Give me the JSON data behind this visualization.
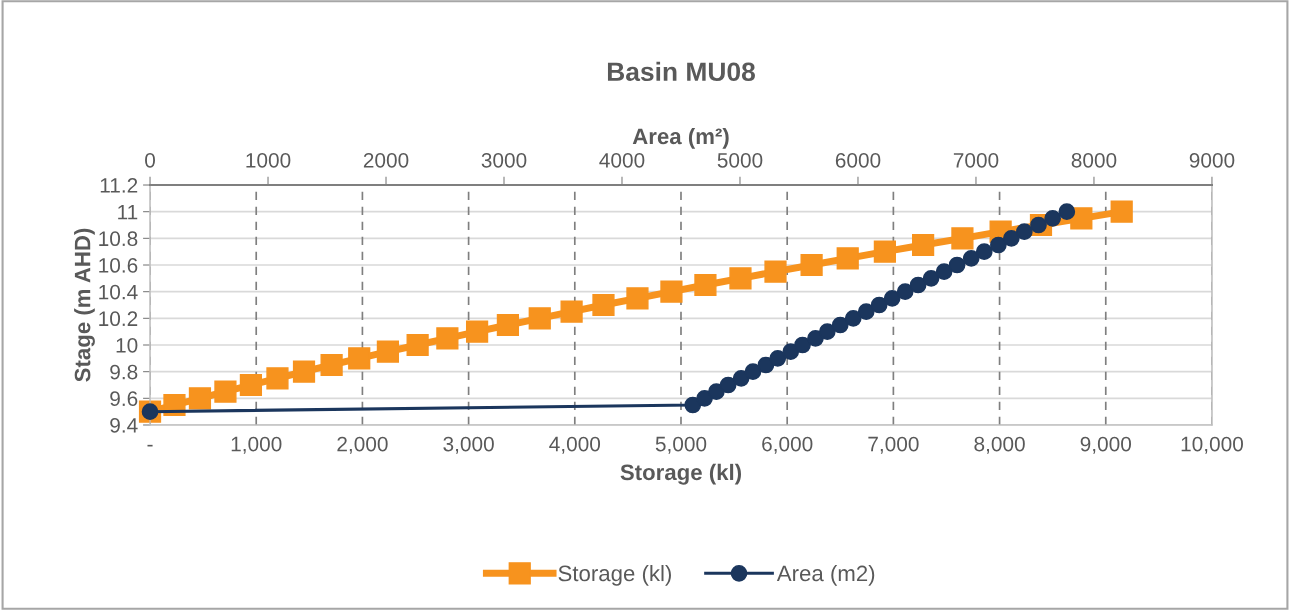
{
  "chart_data": {
    "type": "line",
    "title": "Basin MU08",
    "xlabel": "Storage (kl)",
    "x2label": "Area (m²)",
    "ylabel": "Stage (m AHD)",
    "xlim": [
      0,
      10000
    ],
    "xticks": [
      {
        "value": 0,
        "label": "-"
      },
      {
        "value": 1000,
        "label": "1,000"
      },
      {
        "value": 2000,
        "label": "2,000"
      },
      {
        "value": 3000,
        "label": "3,000"
      },
      {
        "value": 4000,
        "label": "4,000"
      },
      {
        "value": 5000,
        "label": "5,000"
      },
      {
        "value": 6000,
        "label": "6,000"
      },
      {
        "value": 7000,
        "label": "7,000"
      },
      {
        "value": 8000,
        "label": "8,000"
      },
      {
        "value": 9000,
        "label": "9,000"
      },
      {
        "value": 10000,
        "label": "10,000"
      }
    ],
    "x2lim": [
      0,
      9000
    ],
    "x2ticks": [
      0,
      1000,
      2000,
      3000,
      4000,
      5000,
      6000,
      7000,
      8000,
      9000
    ],
    "ylim": [
      9.4,
      11.2
    ],
    "yticks": [
      9.4,
      9.6,
      9.8,
      10,
      10.2,
      10.4,
      10.6,
      10.8,
      11,
      11.2
    ],
    "grid": true,
    "legend": "bottom",
    "line_style": "solid",
    "series": [
      {
        "name": "Storage (kl)",
        "color": "#f7931e",
        "marker": "square",
        "x": [
          0,
          230,
          470,
          710,
          950,
          1200,
          1450,
          1710,
          1970,
          2240,
          2520,
          2800,
          3080,
          3370,
          3670,
          3970,
          4270,
          4590,
          4910,
          5230,
          5560,
          5890,
          6230,
          6570,
          6920,
          7280,
          7650,
          8010,
          8390,
          8770,
          9150
        ],
        "values": [
          9.5,
          9.55,
          9.6,
          9.65,
          9.7,
          9.75,
          9.8,
          9.85,
          9.9,
          9.95,
          10,
          10.05,
          10.1,
          10.15,
          10.2,
          10.25,
          10.3,
          10.35,
          10.4,
          10.45,
          10.5,
          10.55,
          10.6,
          10.65,
          10.7,
          10.75,
          10.8,
          10.85,
          10.9,
          10.95,
          11
        ]
      },
      {
        "name": "Area (m2)",
        "color": "#1b365d",
        "marker": "circle",
        "axis": "x2",
        "x": [
          0,
          4600,
          4700,
          4800,
          4900,
          5010,
          5110,
          5220,
          5320,
          5430,
          5530,
          5640,
          5740,
          5850,
          5960,
          6070,
          6180,
          6290,
          6400,
          6510,
          6620,
          6730,
          6840,
          6960,
          7070,
          7190,
          7300,
          7410,
          7530,
          7650,
          7770
        ],
        "values": [
          9.5,
          9.55,
          9.6,
          9.65,
          9.7,
          9.75,
          9.8,
          9.85,
          9.9,
          9.95,
          10,
          10.05,
          10.1,
          10.15,
          10.2,
          10.25,
          10.3,
          10.35,
          10.4,
          10.45,
          10.5,
          10.55,
          10.6,
          10.65,
          10.7,
          10.75,
          10.8,
          10.85,
          10.9,
          10.95,
          11
        ]
      }
    ]
  }
}
